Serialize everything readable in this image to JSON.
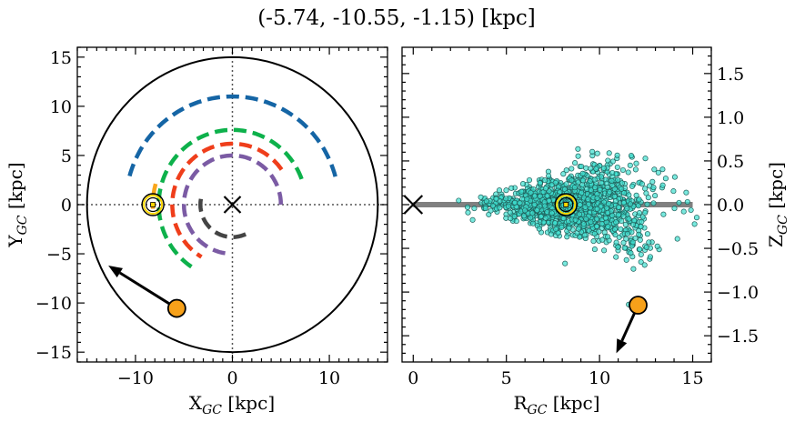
{
  "figure": {
    "title": "(-5.74, -10.55, -1.15) [kpc]"
  },
  "chart_data": [
    {
      "type": "scatter",
      "panel": "left",
      "xlabel": "X_GC [kpc]",
      "ylabel": "Y_GC [kpc]",
      "xlim": [
        -16,
        16
      ],
      "ylim": [
        -16,
        16
      ],
      "xticks": [
        -10,
        0,
        10
      ],
      "yticks": [
        -15,
        -10,
        -5,
        0,
        5,
        10,
        15
      ],
      "xtick_labels": [
        "−10",
        "0",
        "10"
      ],
      "ytick_labels": [
        "−15",
        "−10",
        "−5",
        "0",
        "5",
        "10",
        "15"
      ],
      "boundary_circle_radius": 15,
      "galactic_center": [
        0,
        0
      ],
      "sun_position": [
        -8.2,
        0
      ],
      "object_position": [
        -5.74,
        -10.55
      ],
      "velocity_arrow_end": [
        -12.8,
        -6.2
      ],
      "spiral_arms": [
        {
          "color": "#1565a5",
          "radius": 11.0,
          "theta_deg": [
            15,
            165
          ]
        },
        {
          "color": "#0db14b",
          "radius": 7.6,
          "theta_deg": [
            20,
            240
          ]
        },
        {
          "color": "#f9a61b",
          "radius": 8.2,
          "theta_deg": [
            165,
            183
          ]
        },
        {
          "color": "#ef3e1b",
          "radius": 6.2,
          "theta_deg": [
            35,
            240
          ]
        },
        {
          "color": "#7b5ba4",
          "radius": 5.0,
          "theta_deg": [
            0,
            268
          ]
        },
        {
          "color": "#444444",
          "radius": 3.3,
          "theta_deg": [
            170,
            300
          ]
        }
      ],
      "colors": {
        "object": "#f7a11a",
        "sun": "#ffd700",
        "circle": "#000000",
        "grid": "#555555"
      }
    },
    {
      "type": "scatter",
      "panel": "right",
      "xlabel": "R_GC [kpc]",
      "ylabel": "Z_GC [kpc]",
      "xlim": [
        -0.6,
        16
      ],
      "ylim": [
        -1.8,
        1.8
      ],
      "xticks": [
        0,
        5,
        10,
        15
      ],
      "yticks": [
        -1.5,
        -1.0,
        -0.5,
        0.0,
        0.5,
        1.0,
        1.5
      ],
      "xtick_labels": [
        "0",
        "5",
        "10",
        "15"
      ],
      "ytick_labels": [
        "−1.5",
        "−1.0",
        "−0.5",
        "0.0",
        "0.5",
        "1.0",
        "1.5"
      ],
      "disk_line_x": [
        0,
        15
      ],
      "galactic_center": [
        0,
        0
      ],
      "sun_position": [
        8.2,
        0
      ],
      "object_position": [
        12.07,
        -1.15
      ],
      "velocity_arrow_end": [
        10.9,
        -1.7
      ],
      "star_cloud": {
        "n": 1400,
        "seed": 7,
        "color": "#3fe0d0",
        "edge": "#1f5f5a"
      },
      "colors": {
        "object": "#f7a11a",
        "sun": "#ffd700",
        "disk": "#808080"
      }
    }
  ]
}
